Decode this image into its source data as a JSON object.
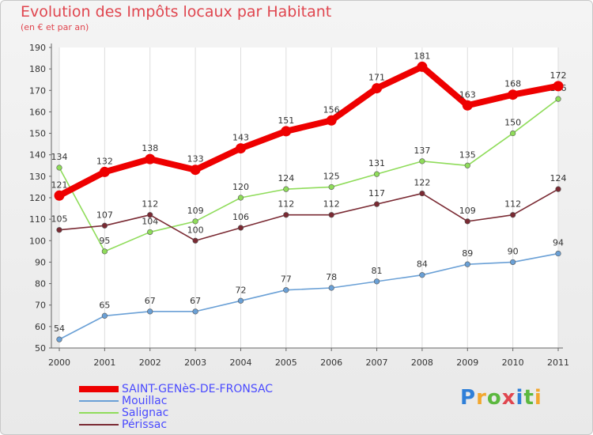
{
  "header": {
    "title": "Evolution des Impôts locaux par Habitant",
    "subtitle": "(en € et par an)"
  },
  "logo": {
    "text": "Proxiti",
    "colors": [
      "#2f7fd8",
      "#f2a72e",
      "#5cb83f",
      "#e0464f",
      "#2f7fd8",
      "#5cb83f",
      "#f2a72e"
    ]
  },
  "chart_data": {
    "type": "line",
    "x": [
      "2000",
      "2001",
      "2002",
      "2003",
      "2004",
      "2005",
      "2006",
      "2007",
      "2008",
      "2009",
      "2010",
      "2011"
    ],
    "ylim": [
      50,
      190
    ],
    "yticks": [
      50,
      60,
      70,
      80,
      90,
      100,
      110,
      120,
      130,
      140,
      150,
      160,
      170,
      180,
      190
    ],
    "grid": "vertical",
    "legend_position": "bottom-left",
    "series": [
      {
        "name": "Mouillac",
        "color": "#6aa0d6",
        "values": [
          54,
          65,
          67,
          67,
          72,
          77,
          78,
          81,
          84,
          89,
          90,
          94
        ]
      },
      {
        "name": "Salignac",
        "color": "#8fdc5a",
        "values": [
          134,
          95,
          104,
          109,
          120,
          124,
          125,
          131,
          137,
          135,
          150,
          166
        ]
      },
      {
        "name": "Périssac",
        "color": "#7a2a33",
        "values": [
          105,
          107,
          112,
          100,
          106,
          112,
          112,
          117,
          122,
          109,
          112,
          124
        ]
      },
      {
        "name": "SAINT-GENèS-DE-FRONSAC",
        "color": "#ee0000",
        "values": [
          121,
          132,
          138,
          133,
          143,
          151,
          156,
          171,
          181,
          163,
          168,
          172
        ]
      }
    ],
    "legend": [
      {
        "name": "SAINT-GENèS-DE-FRONSAC",
        "color": "#ee0000"
      },
      {
        "name": "Mouillac",
        "color": "#6aa0d6"
      },
      {
        "name": "Salignac",
        "color": "#8fdc5a"
      },
      {
        "name": "Périssac",
        "color": "#7a2a33"
      }
    ]
  }
}
